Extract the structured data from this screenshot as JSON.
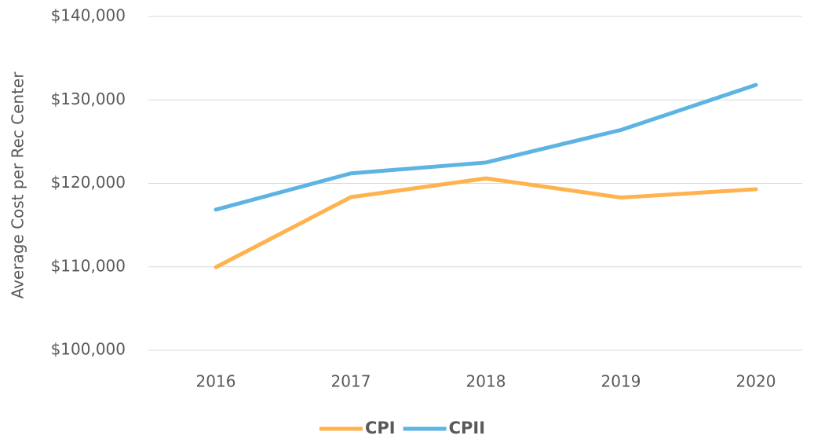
{
  "chart_data": {
    "type": "line",
    "y_label": "Average Cost per Rec Center",
    "categories": [
      "2016",
      "2017",
      "2018",
      "2019",
      "2020"
    ],
    "series": [
      {
        "name": "CPI",
        "color": "#ffb24e",
        "values": [
          109950,
          118350,
          120600,
          118300,
          119300
        ]
      },
      {
        "name": "CPII",
        "color": "#5db4e3",
        "values": [
          116850,
          121200,
          122500,
          126400,
          131800
        ]
      }
    ],
    "ylim": [
      100000,
      140000
    ],
    "yticks": [
      {
        "value": 100000,
        "label": "$100,000"
      },
      {
        "value": 110000,
        "label": "$110,000"
      },
      {
        "value": 120000,
        "label": "$120,000"
      },
      {
        "value": 130000,
        "label": "$130,000"
      },
      {
        "value": 140000,
        "label": "$140,000"
      }
    ],
    "grid": true,
    "legend": "bottom"
  }
}
